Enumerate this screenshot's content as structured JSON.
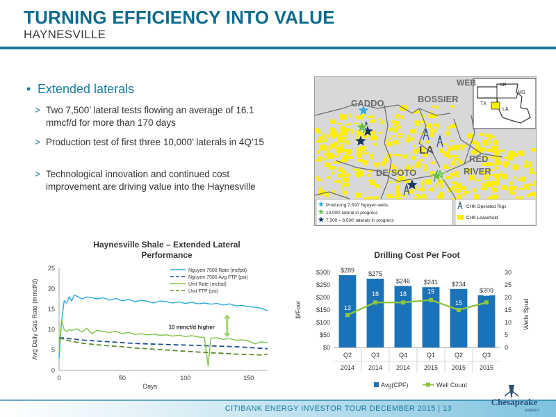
{
  "header": {
    "title": "TURNING EFFICIENCY INTO VALUE",
    "subtitle": "HAYNESVILLE"
  },
  "bullets": {
    "main": "Extended laterals",
    "marker": "•",
    "sub_marker": ">",
    "items": [
      "Two 7,500’ lateral tests flowing an average of 16.1 mmcf/d for more than 170 days",
      "Production test of first three 10,000’ laterals in 4Q’15",
      "Technological innovation and continued cost improvement are driving value into the Haynesville"
    ]
  },
  "map": {
    "labels": [
      "CADDO",
      "BOSSIER",
      "WEB",
      "LA",
      "DE SOTO",
      "RED",
      "RIVER"
    ],
    "inset_labels": [
      "AR",
      "MS",
      "TX",
      "LA"
    ],
    "legend_left": [
      "Producing 7,500’ Nguyen wells",
      "10,000’ lateral in progress",
      "7,500 – 8,500’ laterals in progress"
    ],
    "legend_right": [
      "CHK Operated Rigs",
      "CHK Leasehold"
    ],
    "colors": {
      "yellow": "#ffef00",
      "light_star": "#3aaad8",
      "green_star": "#6cc04a",
      "dark_star": "#16385f",
      "rig": "#2a4f7a",
      "land": "#d8d8d8"
    }
  },
  "footer": {
    "text": "CITIBANK ENERGY INVESTOR TOUR DECEMBER 2015  |  13",
    "logo_text": "Chesapeake",
    "logo_sub": "ENERGY"
  },
  "chart_data": [
    {
      "type": "line",
      "title": "Haynesville Shale – Extended Lateral Performance",
      "xlabel": "Days",
      "ylabel": "Avg Daily Gas Rate (mmcf/d)",
      "xlim": [
        0,
        165
      ],
      "ylim": [
        0,
        25
      ],
      "xticks": [
        0,
        50,
        100,
        150
      ],
      "yticks": [
        0,
        5,
        10,
        15,
        20,
        25
      ],
      "annotation": "10 mmcf/d higher",
      "legend": "top-right",
      "series": [
        {
          "name": "Nguyen 7500 Rate (mcfpd)",
          "color": "#29a8e0",
          "dash": "",
          "x": [
            0,
            2,
            4,
            6,
            8,
            10,
            12,
            15,
            18,
            22,
            26,
            30,
            35,
            40,
            45,
            50,
            55,
            60,
            65,
            70,
            75,
            80,
            85,
            90,
            95,
            100,
            105,
            110,
            115,
            120,
            125,
            130,
            135,
            140,
            145,
            150,
            155,
            160,
            165
          ],
          "y": [
            3,
            12,
            17,
            16.5,
            18,
            17,
            18.5,
            18,
            17.5,
            18,
            17.8,
            17.5,
            17.8,
            17.2,
            17.6,
            17,
            17.4,
            16.8,
            17.2,
            16.9,
            16.5,
            17,
            16.8,
            16.5,
            16.8,
            16.4,
            16.7,
            16.3,
            16.5,
            16.2,
            16.4,
            16,
            16.3,
            15.8,
            15.9,
            15.6,
            15.5,
            15.2,
            14.6
          ]
        },
        {
          "name": "Nguyen 7500 Avg FTP (psi)",
          "color": "#1f4e8c",
          "dash": "7,4",
          "x": [
            0,
            5,
            10,
            20,
            30,
            40,
            50,
            60,
            70,
            80,
            90,
            100,
            110,
            120,
            130,
            140,
            150,
            160,
            165
          ],
          "y": [
            8,
            7.9,
            7.7,
            7.4,
            7.2,
            7,
            6.8,
            6.6,
            6.5,
            6.4,
            6.3,
            6.2,
            6.1,
            6,
            5.9,
            5.8,
            5.6,
            5.4,
            5.3
          ]
        },
        {
          "name": "Unit Rate (mcfpd)",
          "color": "#7cc243",
          "dash": "",
          "x": [
            0,
            2,
            4,
            6,
            8,
            10,
            14,
            18,
            22,
            26,
            30,
            35,
            40,
            45,
            50,
            55,
            60,
            65,
            70,
            75,
            80,
            85,
            90,
            95,
            100,
            105,
            110,
            115,
            118,
            120,
            125,
            130,
            135,
            140,
            145,
            150,
            155,
            160,
            165
          ],
          "y": [
            5,
            12.5,
            10,
            9.5,
            10,
            9.8,
            10.2,
            9.4,
            10.3,
            9,
            9.8,
            9.5,
            9.3,
            9.6,
            9,
            9.3,
            8.8,
            9,
            8.7,
            8.9,
            8.6,
            8.7,
            8.4,
            8.6,
            8.3,
            8.5,
            8.2,
            8.1,
            1,
            7.9,
            8,
            7.6,
            7.8,
            7.4,
            7.5,
            7.2,
            6.5,
            7,
            6.8
          ]
        },
        {
          "name": "Unit FTP (psi)",
          "color": "#5a8a2a",
          "dash": "7,4",
          "x": [
            0,
            5,
            10,
            20,
            30,
            40,
            50,
            60,
            70,
            80,
            90,
            100,
            110,
            120,
            130,
            140,
            150,
            160,
            165
          ],
          "y": [
            8,
            7.5,
            7.1,
            6.6,
            6.3,
            6,
            5.8,
            5.5,
            5.3,
            5.1,
            4.9,
            4.7,
            4.5,
            4.3,
            4.2,
            4,
            3.9,
            3.8,
            4
          ]
        }
      ]
    },
    {
      "type": "bar",
      "title": "Drilling Cost Per Foot",
      "ylabel": "$/Foot",
      "ylabel_right": "Wells Spud",
      "categories": [
        "Q2",
        "Q3",
        "Q4",
        "Q1",
        "Q2",
        "Q3"
      ],
      "years": [
        "2014",
        "2014",
        "2014",
        "2015",
        "2015",
        "2015"
      ],
      "ylim": [
        0,
        300
      ],
      "ylim_right": [
        0,
        30
      ],
      "yticks": [
        "$0",
        "$50",
        "$100",
        "$150",
        "$200",
        "$250",
        "$300"
      ],
      "yticks_right": [
        0,
        5,
        10,
        15,
        20,
        25,
        30
      ],
      "legend": "bottom",
      "series": [
        {
          "name": "Avg(CPF)",
          "color": "#1a72b8",
          "values": [
            289,
            275,
            246,
            241,
            234,
            209
          ],
          "labels": [
            "$289",
            "$275",
            "$246",
            "$241",
            "$234",
            "$209"
          ]
        },
        {
          "name": "Well Count",
          "color": "#8cc63f",
          "axis": "right",
          "values": [
            13,
            18,
            18,
            19,
            15,
            18
          ]
        }
      ]
    }
  ]
}
